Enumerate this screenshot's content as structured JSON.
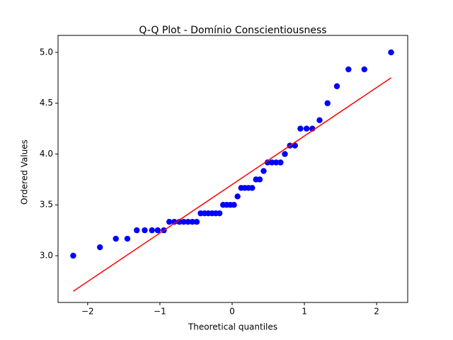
{
  "chart_data": {
    "type": "qq",
    "title": "Q-Q Plot - Domínio Conscientiousness",
    "x_label": "Theoretical quantiles",
    "y_label": "Ordered Values",
    "xlim": [
      -2.41,
      2.43
    ],
    "ylim": [
      2.54,
      5.167
    ],
    "xticks": [
      {
        "value": -2,
        "label": "−2"
      },
      {
        "value": -1,
        "label": "−1"
      },
      0,
      1,
      2
    ],
    "yticks": [
      {
        "value": 3,
        "label": "3.0"
      },
      3.5,
      {
        "value": 4,
        "label": "4.0"
      },
      4.5,
      {
        "value": 5,
        "label": "5.0"
      }
    ],
    "series": [
      {
        "color": "#0000ff",
        "x": [
          -2.2,
          -1.83,
          -1.61,
          -1.45,
          -1.32,
          -1.21,
          -1.11,
          -1.03,
          -0.945,
          -0.87,
          -0.8,
          -0.73,
          -0.67,
          -0.61,
          -0.55,
          -0.49,
          -0.436,
          -0.382,
          -0.33,
          -0.277,
          -0.226,
          -0.175,
          -0.125,
          -0.075,
          -0.025,
          0.025,
          0.075,
          0.125,
          0.175,
          0.226,
          0.277,
          0.33,
          0.382,
          0.436,
          0.49,
          0.55,
          0.61,
          0.67,
          0.73,
          0.8,
          0.87,
          0.945,
          1.03,
          1.11,
          1.21,
          1.32,
          1.45,
          1.61,
          1.83,
          2.2
        ],
        "values": [
          3.0,
          3.083,
          3.167,
          3.167,
          3.25,
          3.25,
          3.25,
          3.25,
          3.25,
          3.333,
          3.333,
          3.333,
          3.333,
          3.333,
          3.333,
          3.333,
          3.417,
          3.417,
          3.417,
          3.417,
          3.417,
          3.417,
          3.5,
          3.5,
          3.5,
          3.5,
          3.583,
          3.667,
          3.667,
          3.667,
          3.667,
          3.75,
          3.75,
          3.833,
          3.917,
          3.917,
          3.917,
          3.917,
          4.0,
          4.083,
          4.083,
          4.25,
          4.25,
          4.25,
          4.333,
          4.5,
          4.667,
          4.833,
          4.833,
          5.0
        ]
      },
      {
        "color": "#ff0000",
        "x": [
          -2.2,
          2.2
        ],
        "values": [
          2.65,
          4.75
        ]
      }
    ]
  }
}
